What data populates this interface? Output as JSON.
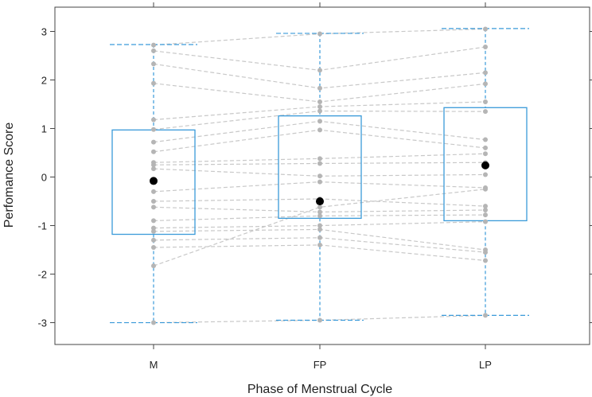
{
  "chart_data": {
    "type": "box",
    "xlabel": "Phase of Menstrual Cycle",
    "ylabel": "Perfomance Score",
    "categories": [
      "M",
      "FP",
      "LP"
    ],
    "ylim": [
      -3.45,
      3.5
    ],
    "yticks": [
      "-3",
      "-2",
      "-1",
      "0",
      "1",
      "2",
      "3"
    ],
    "grid": false,
    "boxes": [
      {
        "category": "M",
        "whisker_low": -3.0,
        "q1": -1.18,
        "median": -0.08,
        "q3": 0.97,
        "whisker_high": 2.73
      },
      {
        "category": "FP",
        "whisker_low": -2.95,
        "q1": -0.85,
        "median": -0.5,
        "q3": 1.26,
        "whisker_high": 2.96
      },
      {
        "category": "LP",
        "whisker_low": -2.85,
        "q1": -0.9,
        "median": 0.24,
        "q3": 1.43,
        "whisker_high": 3.06
      }
    ],
    "subjects": [
      [
        2.72,
        2.95,
        3.05
      ],
      [
        2.6,
        2.2,
        2.68
      ],
      [
        2.33,
        1.83,
        2.15
      ],
      [
        1.93,
        1.55,
        1.92
      ],
      [
        1.18,
        1.45,
        1.55
      ],
      [
        0.98,
        1.36,
        1.35
      ],
      [
        0.72,
        1.15,
        0.77
      ],
      [
        0.52,
        0.97,
        0.6
      ],
      [
        0.3,
        0.38,
        0.48
      ],
      [
        0.25,
        0.28,
        0.3
      ],
      [
        0.17,
        0.02,
        0.05
      ],
      [
        -0.3,
        -0.1,
        -0.22
      ],
      [
        -0.5,
        -0.45,
        -0.6
      ],
      [
        -0.62,
        -0.72,
        -0.68
      ],
      [
        -0.9,
        -0.8,
        -0.78
      ],
      [
        -1.05,
        -1.0,
        -0.92
      ],
      [
        -1.12,
        -1.08,
        -1.5
      ],
      [
        -1.3,
        -1.25,
        -1.55
      ],
      [
        -1.45,
        -1.4,
        -1.72
      ],
      [
        -1.83,
        -0.62,
        -0.25
      ],
      [
        -3.0,
        -2.95,
        -2.85
      ]
    ],
    "colors": {
      "box": "#3a9ad9",
      "point": "#b5b5b5",
      "line": "#c8c8c8",
      "median": "#000000"
    }
  }
}
